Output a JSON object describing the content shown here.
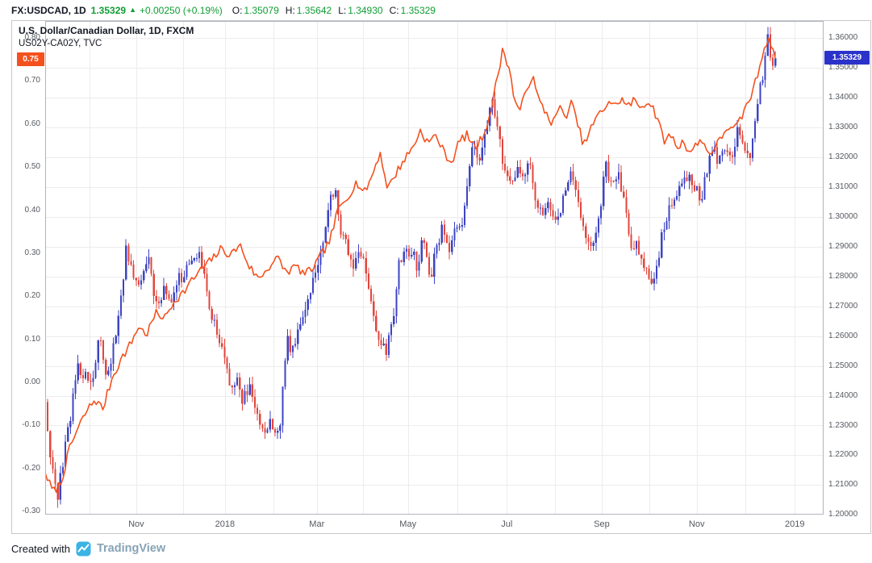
{
  "colors": {
    "positive": "#0f9d33"
  },
  "header": {
    "symbol": "FX:USDCAD, 1D",
    "last_price": "1.35329",
    "arrow": "▲",
    "change": "+0.00250 (+0.19%)",
    "ohlc": [
      {
        "label": "O:",
        "value": "1.35079"
      },
      {
        "label": "H:",
        "value": "1.35642"
      },
      {
        "label": "L:",
        "value": "1.34930"
      },
      {
        "label": "C:",
        "value": "1.35329"
      }
    ]
  },
  "footer": {
    "created_with": "Created with",
    "brand": "TradingView"
  },
  "chart_data": {
    "type": "candlestick+line",
    "title": "U.S. Dollar/Canadian Dollar, 1D, FXCM",
    "overlay": "US02Y-CA02Y, TVC",
    "grid": true,
    "left_axis": {
      "min": -0.3075,
      "max": 0.8395,
      "ticks": [
        "0.80",
        "0.70",
        "0.60",
        "0.50",
        "0.40",
        "0.30",
        "0.20",
        "0.10",
        "0.00",
        "-0.10",
        "-0.20",
        "-0.30"
      ],
      "badge": {
        "value": "0.75",
        "color": "#f4511e"
      }
    },
    "right_axis": {
      "min": 1.2001,
      "max": 1.3657,
      "ticks": [
        "1.36000",
        "1.35000",
        "1.34000",
        "1.33000",
        "1.32000",
        "1.31000",
        "1.30000",
        "1.29000",
        "1.28000",
        "1.27000",
        "1.26000",
        "1.25000",
        "1.24000",
        "1.23000",
        "1.22000",
        "1.21000",
        "1.20000"
      ],
      "badge": {
        "value": "1.35329",
        "color": "#2b32c9"
      }
    },
    "x_axis": {
      "labels": [
        {
          "text": "Nov",
          "f": 0.117
        },
        {
          "text": "2018",
          "f": 0.231
        },
        {
          "text": "Mar",
          "f": 0.349
        },
        {
          "text": "May",
          "f": 0.466
        },
        {
          "text": "Jul",
          "f": 0.593
        },
        {
          "text": "Sep",
          "f": 0.715
        },
        {
          "text": "Nov",
          "f": 0.837
        },
        {
          "text": "2019",
          "f": 0.963
        }
      ],
      "month_gridlines": [
        0.057,
        0.117,
        0.177,
        0.231,
        0.293,
        0.349,
        0.408,
        0.466,
        0.53,
        0.593,
        0.655,
        0.715,
        0.776,
        0.837,
        0.899,
        0.963
      ]
    },
    "series": [
      {
        "name": "USDCAD",
        "type": "candlestick",
        "axis": "right",
        "points": 290,
        "x_end": 0.938,
        "noise": 0.0022,
        "wick": 0.0028,
        "seed": 42,
        "up_color": "#3d44c3",
        "down_color": "#e1463c",
        "keypoints": [
          [
            0.0,
            1.239
          ],
          [
            0.008,
            1.215
          ],
          [
            0.016,
            1.2065
          ],
          [
            0.028,
            1.226
          ],
          [
            0.042,
            1.25
          ],
          [
            0.05,
            1.247
          ],
          [
            0.06,
            1.245
          ],
          [
            0.07,
            1.259
          ],
          [
            0.08,
            1.246
          ],
          [
            0.092,
            1.262
          ],
          [
            0.104,
            1.2885
          ],
          [
            0.112,
            1.281
          ],
          [
            0.122,
            1.277
          ],
          [
            0.132,
            1.2865
          ],
          [
            0.142,
            1.269
          ],
          [
            0.152,
            1.276
          ],
          [
            0.162,
            1.27
          ],
          [
            0.172,
            1.279
          ],
          [
            0.182,
            1.282
          ],
          [
            0.192,
            1.288
          ],
          [
            0.2,
            1.2855
          ],
          [
            0.21,
            1.271
          ],
          [
            0.22,
            1.262
          ],
          [
            0.228,
            1.2545
          ],
          [
            0.238,
            1.242
          ],
          [
            0.246,
            1.246
          ],
          [
            0.254,
            1.238
          ],
          [
            0.262,
            1.243
          ],
          [
            0.272,
            1.233
          ],
          [
            0.282,
            1.229
          ],
          [
            0.29,
            1.231
          ],
          [
            0.296,
            1.2255
          ],
          [
            0.302,
            1.231
          ],
          [
            0.31,
            1.259
          ],
          [
            0.318,
            1.255
          ],
          [
            0.326,
            1.265
          ],
          [
            0.334,
            1.269
          ],
          [
            0.342,
            1.277
          ],
          [
            0.354,
            1.288
          ],
          [
            0.36,
            1.296
          ],
          [
            0.368,
            1.308
          ],
          [
            0.374,
            1.309
          ],
          [
            0.38,
            1.294
          ],
          [
            0.388,
            1.29
          ],
          [
            0.396,
            1.283
          ],
          [
            0.404,
            1.29
          ],
          [
            0.414,
            1.278
          ],
          [
            0.422,
            1.265
          ],
          [
            0.43,
            1.259
          ],
          [
            0.438,
            1.2555
          ],
          [
            0.446,
            1.263
          ],
          [
            0.454,
            1.284
          ],
          [
            0.462,
            1.287
          ],
          [
            0.47,
            1.289
          ],
          [
            0.478,
            1.283
          ],
          [
            0.486,
            1.295
          ],
          [
            0.494,
            1.279
          ],
          [
            0.502,
            1.288
          ],
          [
            0.51,
            1.297
          ],
          [
            0.518,
            1.287
          ],
          [
            0.526,
            1.295
          ],
          [
            0.534,
            1.296
          ],
          [
            0.542,
            1.31
          ],
          [
            0.55,
            1.327
          ],
          [
            0.558,
            1.318
          ],
          [
            0.566,
            1.331
          ],
          [
            0.574,
            1.338
          ],
          [
            0.582,
            1.331
          ],
          [
            0.59,
            1.314
          ],
          [
            0.598,
            1.31
          ],
          [
            0.606,
            1.316
          ],
          [
            0.614,
            1.312
          ],
          [
            0.622,
            1.318
          ],
          [
            0.63,
            1.306
          ],
          [
            0.638,
            1.302
          ],
          [
            0.646,
            1.304
          ],
          [
            0.652,
            1.301
          ],
          [
            0.66,
            1.298
          ],
          [
            0.668,
            1.31
          ],
          [
            0.676,
            1.314
          ],
          [
            0.684,
            1.305
          ],
          [
            0.692,
            1.296
          ],
          [
            0.7,
            1.291
          ],
          [
            0.708,
            1.293
          ],
          [
            0.72,
            1.317
          ],
          [
            0.728,
            1.311
          ],
          [
            0.736,
            1.316
          ],
          [
            0.744,
            1.304
          ],
          [
            0.752,
            1.29
          ],
          [
            0.76,
            1.291
          ],
          [
            0.768,
            1.283
          ],
          [
            0.78,
            1.279
          ],
          [
            0.786,
            1.283
          ],
          [
            0.794,
            1.296
          ],
          [
            0.802,
            1.302
          ],
          [
            0.81,
            1.308
          ],
          [
            0.818,
            1.312
          ],
          [
            0.826,
            1.314
          ],
          [
            0.834,
            1.31
          ],
          [
            0.842,
            1.306
          ],
          [
            0.85,
            1.315
          ],
          [
            0.858,
            1.323
          ],
          [
            0.866,
            1.318
          ],
          [
            0.874,
            1.324
          ],
          [
            0.882,
            1.321
          ],
          [
            0.89,
            1.329
          ],
          [
            0.904,
            1.319
          ],
          [
            0.91,
            1.327
          ],
          [
            0.916,
            1.339
          ],
          [
            0.922,
            1.348
          ],
          [
            0.928,
            1.36
          ],
          [
            0.933,
            1.35
          ],
          [
            0.938,
            1.3533
          ]
        ]
      },
      {
        "name": "US02Y-CA02Y",
        "type": "line",
        "axis": "left",
        "points": 330,
        "x_end": 0.938,
        "noise": 0.01,
        "seed": 7,
        "color": "#f4511e",
        "keypoints": [
          [
            0.0,
            -0.21
          ],
          [
            0.01,
            -0.255
          ],
          [
            0.02,
            -0.235
          ],
          [
            0.032,
            -0.15
          ],
          [
            0.044,
            -0.1
          ],
          [
            0.054,
            -0.065
          ],
          [
            0.064,
            -0.04
          ],
          [
            0.074,
            -0.062
          ],
          [
            0.086,
            0.01
          ],
          [
            0.098,
            0.055
          ],
          [
            0.11,
            0.09
          ],
          [
            0.12,
            0.13
          ],
          [
            0.13,
            0.11
          ],
          [
            0.142,
            0.16
          ],
          [
            0.154,
            0.15
          ],
          [
            0.166,
            0.19
          ],
          [
            0.178,
            0.21
          ],
          [
            0.19,
            0.24
          ],
          [
            0.202,
            0.265
          ],
          [
            0.214,
            0.285
          ],
          [
            0.226,
            0.31
          ],
          [
            0.238,
            0.295
          ],
          [
            0.25,
            0.32
          ],
          [
            0.262,
            0.27
          ],
          [
            0.274,
            0.24
          ],
          [
            0.286,
            0.265
          ],
          [
            0.298,
            0.29
          ],
          [
            0.31,
            0.255
          ],
          [
            0.322,
            0.27
          ],
          [
            0.334,
            0.25
          ],
          [
            0.346,
            0.27
          ],
          [
            0.356,
            0.3
          ],
          [
            0.366,
            0.33
          ],
          [
            0.376,
            0.4
          ],
          [
            0.388,
            0.43
          ],
          [
            0.4,
            0.465
          ],
          [
            0.41,
            0.44
          ],
          [
            0.42,
            0.48
          ],
          [
            0.43,
            0.535
          ],
          [
            0.44,
            0.45
          ],
          [
            0.452,
            0.49
          ],
          [
            0.462,
            0.52
          ],
          [
            0.472,
            0.545
          ],
          [
            0.482,
            0.585
          ],
          [
            0.492,
            0.555
          ],
          [
            0.502,
            0.575
          ],
          [
            0.512,
            0.535
          ],
          [
            0.522,
            0.51
          ],
          [
            0.532,
            0.56
          ],
          [
            0.542,
            0.575
          ],
          [
            0.552,
            0.545
          ],
          [
            0.562,
            0.57
          ],
          [
            0.572,
            0.625
          ],
          [
            0.58,
            0.7
          ],
          [
            0.588,
            0.775
          ],
          [
            0.596,
            0.73
          ],
          [
            0.602,
            0.665
          ],
          [
            0.61,
            0.625
          ],
          [
            0.618,
            0.685
          ],
          [
            0.626,
            0.71
          ],
          [
            0.634,
            0.655
          ],
          [
            0.644,
            0.625
          ],
          [
            0.652,
            0.6
          ],
          [
            0.66,
            0.64
          ],
          [
            0.668,
            0.615
          ],
          [
            0.676,
            0.65
          ],
          [
            0.684,
            0.6
          ],
          [
            0.692,
            0.55
          ],
          [
            0.7,
            0.585
          ],
          [
            0.708,
            0.615
          ],
          [
            0.716,
            0.63
          ],
          [
            0.724,
            0.655
          ],
          [
            0.732,
            0.64
          ],
          [
            0.74,
            0.66
          ],
          [
            0.748,
            0.64
          ],
          [
            0.756,
            0.655
          ],
          [
            0.764,
            0.64
          ],
          [
            0.772,
            0.65
          ],
          [
            0.78,
            0.645
          ],
          [
            0.788,
            0.6
          ],
          [
            0.796,
            0.56
          ],
          [
            0.804,
            0.575
          ],
          [
            0.812,
            0.545
          ],
          [
            0.82,
            0.56
          ],
          [
            0.828,
            0.535
          ],
          [
            0.836,
            0.55
          ],
          [
            0.844,
            0.565
          ],
          [
            0.852,
            0.53
          ],
          [
            0.86,
            0.545
          ],
          [
            0.868,
            0.565
          ],
          [
            0.876,
            0.595
          ],
          [
            0.884,
            0.585
          ],
          [
            0.892,
            0.605
          ],
          [
            0.9,
            0.64
          ],
          [
            0.908,
            0.67
          ],
          [
            0.916,
            0.72
          ],
          [
            0.924,
            0.78
          ],
          [
            0.93,
            0.805
          ],
          [
            0.934,
            0.77
          ],
          [
            0.938,
            0.752
          ]
        ]
      }
    ]
  }
}
